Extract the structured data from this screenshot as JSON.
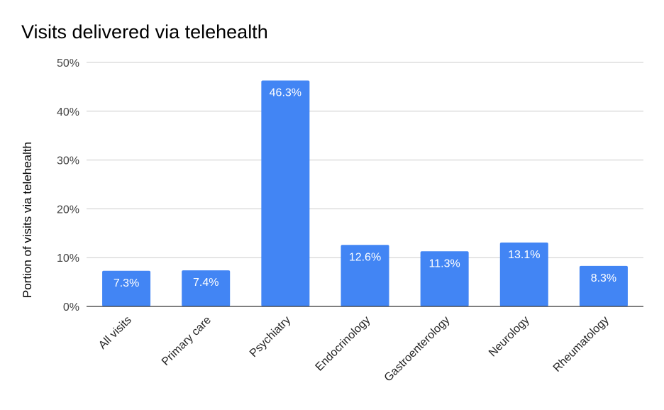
{
  "chart_data": {
    "type": "bar",
    "title": "Visits delivered via telehealth",
    "xlabel": "",
    "ylabel": "Portion of visits via telehealth",
    "categories": [
      "All visits",
      "Primary care",
      "Psychiatry",
      "Endocrinology",
      "Gastroenterology",
      "Neurology",
      "Rheumatology"
    ],
    "values": [
      7.3,
      7.4,
      46.3,
      12.6,
      11.3,
      13.1,
      8.3
    ],
    "data_labels": [
      "7.3%",
      "7.4%",
      "46.3%",
      "12.6%",
      "11.3%",
      "13.1%",
      "8.3%"
    ],
    "ylim": [
      0,
      50
    ],
    "yticks": [
      0,
      10,
      20,
      30,
      40,
      50
    ],
    "ytick_labels": [
      "0%",
      "10%",
      "20%",
      "30%",
      "40%",
      "50%"
    ],
    "grid": true,
    "legend": "none",
    "bar_color": "#4285f4",
    "gridline_color": "#cccccc",
    "axis_color": "#333333"
  }
}
